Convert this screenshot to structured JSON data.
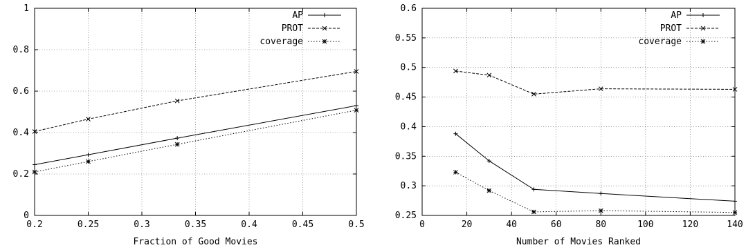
{
  "chart_data": [
    {
      "type": "line",
      "xlabel": "Fraction of Good Movies",
      "ylabel": "",
      "xlim": [
        0.2,
        0.5
      ],
      "ylim": [
        0,
        1
      ],
      "xticks": [
        0.2,
        0.25,
        0.3,
        0.35,
        0.4,
        0.45,
        0.5
      ],
      "xtick_labels": [
        "0.2",
        "0.25",
        "0.3",
        "0.35",
        "0.4",
        "0.45",
        "0.5"
      ],
      "yticks": [
        0,
        0.2,
        0.4,
        0.6,
        0.8,
        1
      ],
      "ytick_labels": [
        "0",
        "0.2",
        "0.4",
        "0.6",
        "0.8",
        "1"
      ],
      "grid": true,
      "legend_position": "top-right",
      "series": [
        {
          "name": "AP",
          "marker": "plus",
          "dash": "solid",
          "x": [
            0.2,
            0.25,
            0.333,
            0.5
          ],
          "y": [
            0.245,
            0.293,
            0.373,
            0.53
          ]
        },
        {
          "name": "PROT",
          "marker": "cross",
          "dash": "dashed",
          "x": [
            0.2,
            0.25,
            0.333,
            0.5
          ],
          "y": [
            0.405,
            0.465,
            0.553,
            0.695
          ]
        },
        {
          "name": "coverage",
          "marker": "star",
          "dash": "dotted",
          "x": [
            0.2,
            0.25,
            0.333,
            0.5
          ],
          "y": [
            0.21,
            0.26,
            0.343,
            0.508
          ]
        }
      ]
    },
    {
      "type": "line",
      "xlabel": "Number of Movies Ranked",
      "ylabel": "",
      "xlim": [
        0,
        140
      ],
      "ylim": [
        0.25,
        0.6
      ],
      "xticks": [
        0,
        20,
        40,
        60,
        80,
        100,
        120,
        140
      ],
      "xtick_labels": [
        "0",
        "20",
        "40",
        "60",
        "80",
        "100",
        "120",
        "140"
      ],
      "yticks": [
        0.25,
        0.3,
        0.35,
        0.4,
        0.45,
        0.5,
        0.55,
        0.6
      ],
      "ytick_labels": [
        "0.25",
        "0.3",
        "0.35",
        "0.4",
        "0.45",
        "0.5",
        "0.55",
        "0.6"
      ],
      "grid": true,
      "legend_position": "top-right",
      "series": [
        {
          "name": "AP",
          "marker": "plus",
          "dash": "solid",
          "x": [
            15,
            30,
            50,
            80,
            140
          ],
          "y": [
            0.388,
            0.342,
            0.294,
            0.287,
            0.274
          ]
        },
        {
          "name": "PROT",
          "marker": "cross",
          "dash": "dashed",
          "x": [
            15,
            30,
            50,
            80,
            140
          ],
          "y": [
            0.494,
            0.487,
            0.455,
            0.464,
            0.463
          ]
        },
        {
          "name": "coverage",
          "marker": "star",
          "dash": "dotted",
          "x": [
            15,
            30,
            50,
            80,
            140
          ],
          "y": [
            0.323,
            0.292,
            0.256,
            0.258,
            0.255
          ]
        }
      ]
    }
  ]
}
